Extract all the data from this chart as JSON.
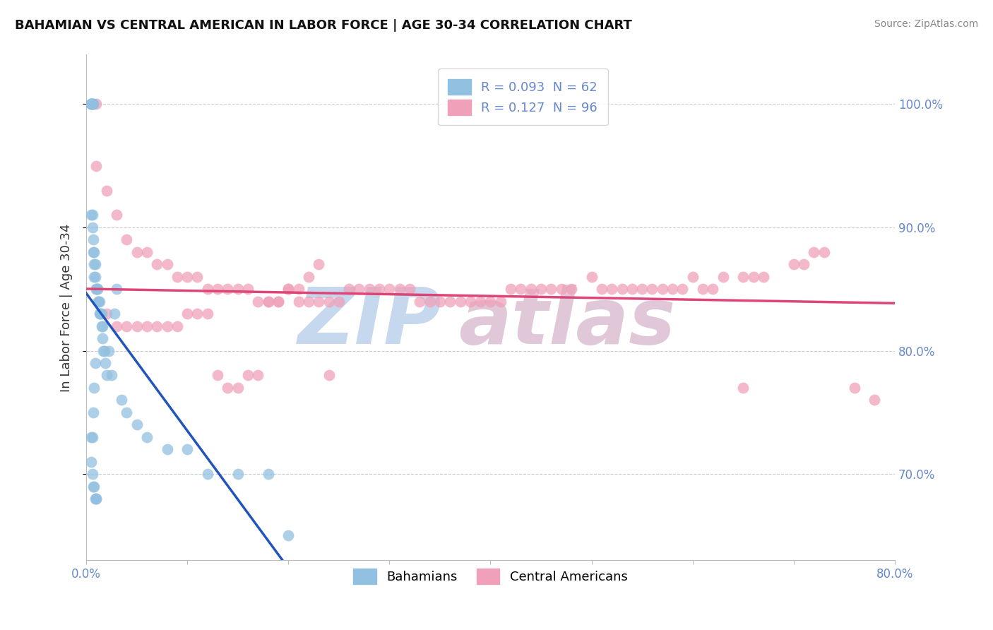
{
  "title": "BAHAMIAN VS CENTRAL AMERICAN IN LABOR FORCE | AGE 30-34 CORRELATION CHART",
  "source": "Source: ZipAtlas.com",
  "ylabel": "In Labor Force | Age 30-34",
  "R_blue": 0.093,
  "N_blue": 62,
  "R_pink": 0.127,
  "N_pink": 96,
  "blue_scatter_color": "#92c0e0",
  "pink_scatter_color": "#f0a0b8",
  "blue_line_color": "#2255bb",
  "pink_line_color": "#dd4477",
  "dashed_color": "#aaaaaa",
  "tick_color": "#6688cc",
  "watermark_zip_color": "#c5d8ee",
  "watermark_atlas_color": "#e0c8d8",
  "xlim": [
    0.0,
    0.8
  ],
  "ylim": [
    0.63,
    1.04
  ],
  "y_ticks": [
    0.7,
    0.8,
    0.9,
    1.0
  ],
  "y_tick_labels": [
    "70.0%",
    "80.0%",
    "90.0%",
    "100.0%"
  ],
  "x_ticks": [
    0.0,
    0.1,
    0.2,
    0.3,
    0.4,
    0.5,
    0.6,
    0.7,
    0.8
  ],
  "x_tick_labels": [
    "0.0%",
    "",
    "",
    "",
    "",
    "",
    "",
    "",
    "80.0%"
  ],
  "blue_x": [
    0.005,
    0.005,
    0.005,
    0.005,
    0.006,
    0.006,
    0.007,
    0.007,
    0.005,
    0.006,
    0.006,
    0.007,
    0.007,
    0.008,
    0.008,
    0.009,
    0.008,
    0.009,
    0.01,
    0.01,
    0.011,
    0.011,
    0.012,
    0.012,
    0.013,
    0.013,
    0.014,
    0.014,
    0.015,
    0.015,
    0.016,
    0.016,
    0.017,
    0.018,
    0.019,
    0.02,
    0.022,
    0.025,
    0.028,
    0.03,
    0.035,
    0.04,
    0.05,
    0.06,
    0.08,
    0.1,
    0.12,
    0.15,
    0.18,
    0.2,
    0.005,
    0.006,
    0.007,
    0.008,
    0.009,
    0.01,
    0.005,
    0.006,
    0.007,
    0.008,
    0.009,
    0.01
  ],
  "blue_y": [
    1.0,
    1.0,
    1.0,
    1.0,
    1.0,
    1.0,
    1.0,
    1.0,
    0.91,
    0.91,
    0.9,
    0.89,
    0.88,
    0.88,
    0.87,
    0.87,
    0.86,
    0.86,
    0.85,
    0.85,
    0.85,
    0.85,
    0.84,
    0.84,
    0.84,
    0.83,
    0.83,
    0.83,
    0.83,
    0.82,
    0.82,
    0.81,
    0.8,
    0.8,
    0.79,
    0.78,
    0.8,
    0.78,
    0.83,
    0.85,
    0.76,
    0.75,
    0.74,
    0.73,
    0.72,
    0.72,
    0.7,
    0.7,
    0.7,
    0.65,
    0.71,
    0.7,
    0.69,
    0.69,
    0.68,
    0.68,
    0.73,
    0.73,
    0.75,
    0.77,
    0.79,
    0.68
  ],
  "pink_x": [
    0.01,
    0.01,
    0.02,
    0.03,
    0.04,
    0.05,
    0.06,
    0.07,
    0.08,
    0.09,
    0.1,
    0.11,
    0.12,
    0.13,
    0.14,
    0.15,
    0.16,
    0.17,
    0.18,
    0.19,
    0.2,
    0.21,
    0.22,
    0.23,
    0.24,
    0.25,
    0.26,
    0.27,
    0.28,
    0.29,
    0.3,
    0.31,
    0.32,
    0.33,
    0.34,
    0.35,
    0.36,
    0.37,
    0.38,
    0.39,
    0.4,
    0.41,
    0.42,
    0.43,
    0.44,
    0.45,
    0.46,
    0.47,
    0.48,
    0.5,
    0.51,
    0.52,
    0.53,
    0.54,
    0.55,
    0.56,
    0.57,
    0.58,
    0.59,
    0.6,
    0.61,
    0.62,
    0.63,
    0.65,
    0.66,
    0.67,
    0.7,
    0.71,
    0.72,
    0.73,
    0.02,
    0.03,
    0.04,
    0.05,
    0.06,
    0.07,
    0.08,
    0.09,
    0.1,
    0.11,
    0.12,
    0.13,
    0.14,
    0.15,
    0.16,
    0.17,
    0.18,
    0.19,
    0.2,
    0.21,
    0.22,
    0.23,
    0.24,
    0.65,
    0.76,
    0.78
  ],
  "pink_y": [
    1.0,
    0.95,
    0.93,
    0.91,
    0.89,
    0.88,
    0.88,
    0.87,
    0.87,
    0.86,
    0.86,
    0.86,
    0.85,
    0.85,
    0.85,
    0.85,
    0.85,
    0.84,
    0.84,
    0.84,
    0.85,
    0.84,
    0.84,
    0.84,
    0.84,
    0.84,
    0.85,
    0.85,
    0.85,
    0.85,
    0.85,
    0.85,
    0.85,
    0.84,
    0.84,
    0.84,
    0.84,
    0.84,
    0.84,
    0.84,
    0.84,
    0.84,
    0.85,
    0.85,
    0.85,
    0.85,
    0.85,
    0.85,
    0.85,
    0.86,
    0.85,
    0.85,
    0.85,
    0.85,
    0.85,
    0.85,
    0.85,
    0.85,
    0.85,
    0.86,
    0.85,
    0.85,
    0.86,
    0.86,
    0.86,
    0.86,
    0.87,
    0.87,
    0.88,
    0.88,
    0.83,
    0.82,
    0.82,
    0.82,
    0.82,
    0.82,
    0.82,
    0.82,
    0.83,
    0.83,
    0.83,
    0.78,
    0.77,
    0.77,
    0.78,
    0.78,
    0.84,
    0.84,
    0.85,
    0.85,
    0.86,
    0.87,
    0.78,
    0.77,
    0.77,
    0.76
  ]
}
